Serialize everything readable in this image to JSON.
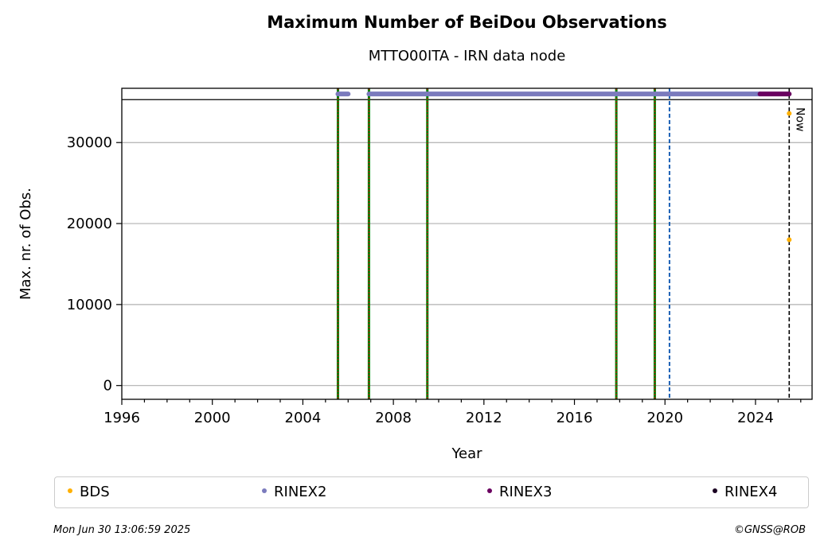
{
  "header": {
    "title": "Maximum Number of BeiDou Observations",
    "subtitle": "MTTO00ITA - IRN data node"
  },
  "footer": {
    "timestamp": "Mon Jun 30 13:06:59 2025",
    "credit": "©GNSS@ROB"
  },
  "chart_data": {
    "type": "scatter",
    "title": "Maximum Number of BeiDou Observations",
    "subtitle": "MTTO00ITA - IRN data node",
    "xlabel": "Year",
    "ylabel": "Max. nr. of Obs.",
    "xlim": [
      1996,
      2026.5
    ],
    "ylim": [
      -1700,
      36700
    ],
    "x_ticks": [
      1996,
      2000,
      2004,
      2008,
      2012,
      2016,
      2020,
      2024
    ],
    "y_ticks": [
      0,
      10000,
      20000,
      30000
    ],
    "grid": "horizontal",
    "legend_position": "below",
    "reference_line_y": 35300,
    "top_band_y": 36000,
    "series": [
      {
        "name": "BDS",
        "color": "#ffb000",
        "points": [
          [
            2025.49,
            33600
          ],
          [
            2025.49,
            18000
          ]
        ]
      },
      {
        "name": "RINEX2",
        "color": "#7b7bbd",
        "segments": [
          [
            2005.55,
            2006.0
          ],
          [
            2006.92,
            2024.2
          ]
        ]
      },
      {
        "name": "RINEX3",
        "color": "#6a0060",
        "segments": [
          [
            2024.2,
            2025.49
          ]
        ]
      },
      {
        "name": "RINEX4",
        "color": "#1a0022",
        "segments": []
      }
    ],
    "event_lines": [
      2005.55,
      2006.92,
      2009.5,
      2017.85,
      2019.55
    ],
    "event_line_colors": {
      "outer": "#008000",
      "inner": "#dd0000"
    },
    "dashed_line": {
      "x": 2020.2,
      "color": "#1a5fb4"
    },
    "now_line": {
      "x": 2025.49,
      "label": "Now",
      "color": "#000000"
    }
  }
}
